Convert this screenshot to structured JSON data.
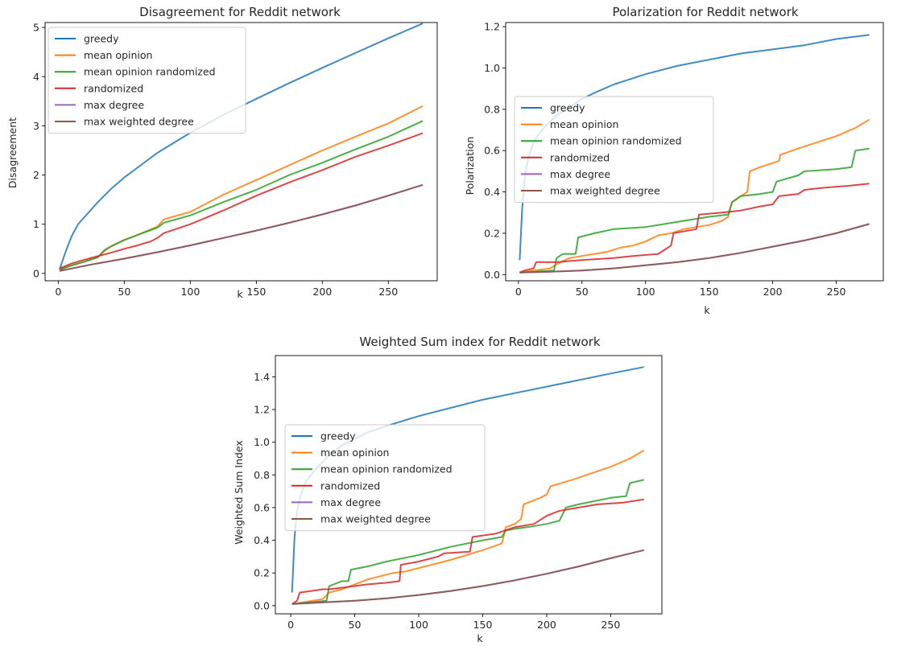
{
  "colors": {
    "greedy": "#1f77b4",
    "mean opinion": "#ff7f0e",
    "mean opinion randomized": "#2ca02c",
    "randomized": "#d62728",
    "max degree": "#9467bd",
    "max weighted degree": "#8c564b"
  },
  "chart_data": [
    {
      "type": "line",
      "title": "Disagreement for Reddit network",
      "xlabel": "k",
      "ylabel": "Disagreement",
      "xlim": [
        -10,
        287
      ],
      "ylim": [
        -0.15,
        5.1
      ],
      "xticks": [
        0,
        50,
        100,
        150,
        200,
        250
      ],
      "yticks": [
        0,
        1,
        2,
        3,
        4,
        5
      ],
      "legend_loc": "upper-left",
      "series": [
        {
          "name": "greedy",
          "x": [
            1,
            5,
            10,
            15,
            20,
            30,
            40,
            50,
            75,
            100,
            125,
            150,
            175,
            200,
            225,
            250,
            276
          ],
          "y": [
            0.08,
            0.4,
            0.75,
            1.0,
            1.15,
            1.45,
            1.72,
            1.95,
            2.45,
            2.86,
            3.22,
            3.55,
            3.87,
            4.18,
            4.48,
            4.78,
            5.08
          ]
        },
        {
          "name": "mean opinion",
          "x": [
            1,
            10,
            20,
            30,
            35,
            40,
            50,
            60,
            75,
            80,
            100,
            125,
            150,
            175,
            200,
            225,
            250,
            276
          ],
          "y": [
            0.08,
            0.16,
            0.24,
            0.33,
            0.48,
            0.55,
            0.68,
            0.78,
            0.95,
            1.1,
            1.25,
            1.6,
            1.9,
            2.2,
            2.5,
            2.78,
            3.05,
            3.4
          ]
        },
        {
          "name": "mean opinion randomized",
          "x": [
            1,
            10,
            20,
            30,
            35,
            40,
            50,
            60,
            75,
            80,
            100,
            125,
            150,
            175,
            200,
            225,
            250,
            276
          ],
          "y": [
            0.07,
            0.16,
            0.24,
            0.33,
            0.46,
            0.55,
            0.68,
            0.78,
            0.93,
            1.03,
            1.18,
            1.45,
            1.7,
            2.0,
            2.25,
            2.52,
            2.78,
            3.1
          ]
        },
        {
          "name": "randomized",
          "x": [
            1,
            10,
            20,
            30,
            40,
            50,
            60,
            70,
            75,
            80,
            100,
            125,
            150,
            175,
            200,
            225,
            250,
            276
          ],
          "y": [
            0.1,
            0.2,
            0.28,
            0.35,
            0.42,
            0.5,
            0.57,
            0.65,
            0.72,
            0.82,
            1.0,
            1.28,
            1.58,
            1.85,
            2.1,
            2.37,
            2.6,
            2.85
          ]
        },
        {
          "name": "max degree",
          "x": [
            1,
            25,
            50,
            75,
            100,
            125,
            150,
            175,
            200,
            225,
            250,
            276
          ],
          "y": [
            0.05,
            0.18,
            0.3,
            0.43,
            0.57,
            0.72,
            0.87,
            1.03,
            1.2,
            1.38,
            1.58,
            1.8
          ]
        },
        {
          "name": "max weighted degree",
          "x": [
            1,
            25,
            50,
            75,
            100,
            125,
            150,
            175,
            200,
            225,
            250,
            276
          ],
          "y": [
            0.05,
            0.18,
            0.3,
            0.43,
            0.57,
            0.72,
            0.87,
            1.03,
            1.2,
            1.38,
            1.58,
            1.8
          ]
        }
      ]
    },
    {
      "type": "line",
      "title": "Polarization for Reddit network",
      "xlabel": "k",
      "ylabel": "Polarization",
      "xlim": [
        -10,
        287
      ],
      "ylim": [
        -0.03,
        1.22
      ],
      "xticks": [
        0,
        50,
        100,
        150,
        200,
        250
      ],
      "yticks": [
        0.0,
        0.2,
        0.4,
        0.6,
        0.8,
        1.0,
        1.2
      ],
      "legend_loc": "center-left",
      "series": [
        {
          "name": "greedy",
          "x": [
            1,
            3,
            5,
            8,
            12,
            16,
            20,
            25,
            30,
            40,
            50,
            60,
            75,
            100,
            125,
            150,
            175,
            200,
            225,
            250,
            276
          ],
          "y": [
            0.07,
            0.32,
            0.47,
            0.57,
            0.64,
            0.68,
            0.71,
            0.74,
            0.77,
            0.81,
            0.85,
            0.88,
            0.92,
            0.97,
            1.01,
            1.04,
            1.07,
            1.09,
            1.11,
            1.14,
            1.16
          ]
        },
        {
          "name": "mean opinion",
          "x": [
            1,
            25,
            30,
            40,
            50,
            60,
            70,
            80,
            90,
            100,
            110,
            120,
            130,
            140,
            150,
            160,
            165,
            168,
            175,
            180,
            182,
            190,
            205,
            206,
            220,
            235,
            250,
            265,
            276
          ],
          "y": [
            0.01,
            0.03,
            0.05,
            0.08,
            0.09,
            0.1,
            0.11,
            0.13,
            0.14,
            0.16,
            0.19,
            0.2,
            0.22,
            0.23,
            0.24,
            0.26,
            0.28,
            0.35,
            0.38,
            0.4,
            0.5,
            0.52,
            0.55,
            0.58,
            0.61,
            0.64,
            0.67,
            0.71,
            0.75
          ]
        },
        {
          "name": "mean opinion randomized",
          "x": [
            1,
            28,
            30,
            35,
            45,
            47,
            60,
            75,
            100,
            120,
            130,
            140,
            150,
            165,
            168,
            175,
            190,
            200,
            203,
            220,
            225,
            250,
            262,
            265,
            276
          ],
          "y": [
            0.01,
            0.02,
            0.08,
            0.1,
            0.1,
            0.18,
            0.2,
            0.22,
            0.23,
            0.25,
            0.26,
            0.27,
            0.28,
            0.29,
            0.35,
            0.38,
            0.39,
            0.4,
            0.45,
            0.48,
            0.5,
            0.51,
            0.52,
            0.6,
            0.61
          ]
        },
        {
          "name": "randomized",
          "x": [
            1,
            5,
            12,
            14,
            30,
            50,
            75,
            90,
            110,
            115,
            120,
            122,
            140,
            142,
            160,
            175,
            190,
            200,
            205,
            220,
            225,
            240,
            260,
            276
          ],
          "y": [
            0.01,
            0.02,
            0.03,
            0.06,
            0.06,
            0.07,
            0.08,
            0.09,
            0.1,
            0.12,
            0.14,
            0.2,
            0.22,
            0.29,
            0.3,
            0.31,
            0.33,
            0.34,
            0.38,
            0.39,
            0.41,
            0.42,
            0.43,
            0.44
          ]
        },
        {
          "name": "max degree",
          "x": [
            1,
            25,
            50,
            75,
            100,
            125,
            150,
            175,
            200,
            225,
            250,
            276
          ],
          "y": [
            0.01,
            0.014,
            0.02,
            0.03,
            0.045,
            0.06,
            0.08,
            0.105,
            0.135,
            0.165,
            0.2,
            0.245
          ]
        },
        {
          "name": "max weighted degree",
          "x": [
            1,
            25,
            50,
            75,
            100,
            125,
            150,
            175,
            200,
            225,
            250,
            276
          ],
          "y": [
            0.01,
            0.014,
            0.02,
            0.03,
            0.045,
            0.06,
            0.08,
            0.105,
            0.135,
            0.165,
            0.2,
            0.245
          ]
        }
      ]
    },
    {
      "type": "line",
      "title": "Weighted Sum index for Reddit network",
      "xlabel": "k",
      "ylabel": "Weighted Sum Index",
      "xlim": [
        -12,
        290
      ],
      "ylim": [
        -0.05,
        1.53
      ],
      "xticks": [
        0,
        50,
        100,
        150,
        200,
        250
      ],
      "yticks": [
        0.0,
        0.2,
        0.4,
        0.6,
        0.8,
        1.0,
        1.2,
        1.4
      ],
      "legend_loc": "center-left",
      "series": [
        {
          "name": "greedy",
          "x": [
            1,
            3,
            5,
            8,
            12,
            16,
            20,
            25,
            30,
            40,
            50,
            60,
            75,
            100,
            125,
            150,
            175,
            200,
            225,
            250,
            276
          ],
          "y": [
            0.08,
            0.42,
            0.58,
            0.68,
            0.76,
            0.8,
            0.84,
            0.88,
            0.92,
            0.98,
            1.02,
            1.06,
            1.1,
            1.16,
            1.21,
            1.26,
            1.3,
            1.34,
            1.38,
            1.42,
            1.46
          ]
        },
        {
          "name": "mean opinion",
          "x": [
            1,
            25,
            30,
            40,
            50,
            60,
            75,
            80,
            90,
            100,
            125,
            150,
            165,
            168,
            175,
            180,
            182,
            195,
            200,
            203,
            220,
            235,
            250,
            265,
            276
          ],
          "y": [
            0.01,
            0.04,
            0.08,
            0.1,
            0.13,
            0.16,
            0.19,
            0.2,
            0.21,
            0.23,
            0.28,
            0.34,
            0.38,
            0.48,
            0.5,
            0.53,
            0.62,
            0.66,
            0.68,
            0.73,
            0.77,
            0.81,
            0.85,
            0.9,
            0.95
          ]
        },
        {
          "name": "mean opinion randomized",
          "x": [
            1,
            28,
            30,
            40,
            45,
            47,
            60,
            75,
            100,
            125,
            150,
            165,
            168,
            175,
            185,
            200,
            210,
            215,
            225,
            250,
            262,
            265,
            276
          ],
          "y": [
            0.01,
            0.03,
            0.12,
            0.15,
            0.15,
            0.22,
            0.24,
            0.27,
            0.31,
            0.36,
            0.4,
            0.42,
            0.46,
            0.47,
            0.48,
            0.5,
            0.52,
            0.6,
            0.62,
            0.66,
            0.67,
            0.75,
            0.77
          ]
        },
        {
          "name": "randomized",
          "x": [
            1,
            5,
            7,
            25,
            30,
            50,
            60,
            75,
            85,
            86,
            100,
            115,
            120,
            140,
            142,
            160,
            175,
            190,
            200,
            210,
            225,
            240,
            260,
            276
          ],
          "y": [
            0.01,
            0.03,
            0.08,
            0.1,
            0.1,
            0.12,
            0.13,
            0.14,
            0.15,
            0.25,
            0.27,
            0.3,
            0.32,
            0.33,
            0.42,
            0.44,
            0.48,
            0.5,
            0.55,
            0.58,
            0.6,
            0.62,
            0.63,
            0.65
          ]
        },
        {
          "name": "max degree",
          "x": [
            1,
            25,
            50,
            75,
            100,
            125,
            150,
            175,
            200,
            225,
            250,
            276
          ],
          "y": [
            0.01,
            0.02,
            0.03,
            0.045,
            0.065,
            0.09,
            0.12,
            0.155,
            0.195,
            0.24,
            0.29,
            0.34
          ]
        },
        {
          "name": "max weighted degree",
          "x": [
            1,
            25,
            50,
            75,
            100,
            125,
            150,
            175,
            200,
            225,
            250,
            276
          ],
          "y": [
            0.01,
            0.02,
            0.03,
            0.045,
            0.065,
            0.09,
            0.12,
            0.155,
            0.195,
            0.24,
            0.29,
            0.34
          ]
        }
      ]
    }
  ]
}
